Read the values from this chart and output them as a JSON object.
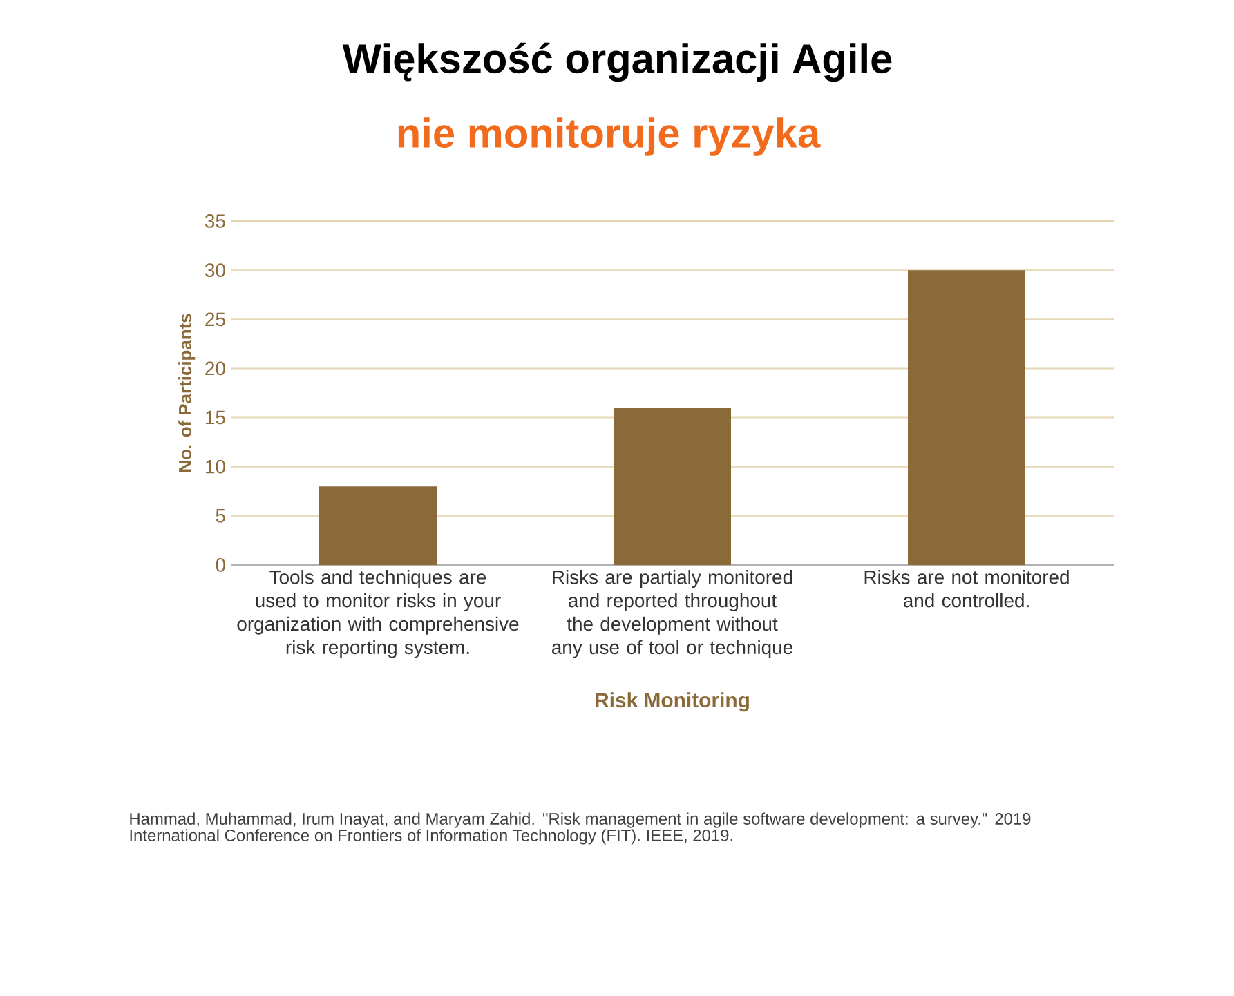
{
  "chart_data": {
    "type": "bar",
    "title": "Większość organizacji Agile",
    "subtitle": "nie monitoruje ryzyka",
    "xlabel": "Risk Monitoring",
    "ylabel": "No. of Participants",
    "categories": [
      "Tools and techniques are used to monitor risks in your organization with comprehensive risk reporting system.",
      "Risks are partialy monitored and reported throughout the development without any use of tool or technique",
      "Risks are not monitored and controlled."
    ],
    "values": [
      8,
      16,
      30
    ],
    "color": "#8b6a3a",
    "ylim": [
      0,
      35
    ],
    "yticks": [
      0,
      5,
      10,
      15,
      20,
      25,
      30,
      35
    ],
    "grid": "y",
    "annotations": [
      "Hammad, Muhammad, Irum Inayat, and Maryam Zahid. \"Risk management in agile software development: a survey.\" 2019 International Conference on Frontiers of Information Technology (FIT). IEEE, 2019."
    ]
  }
}
